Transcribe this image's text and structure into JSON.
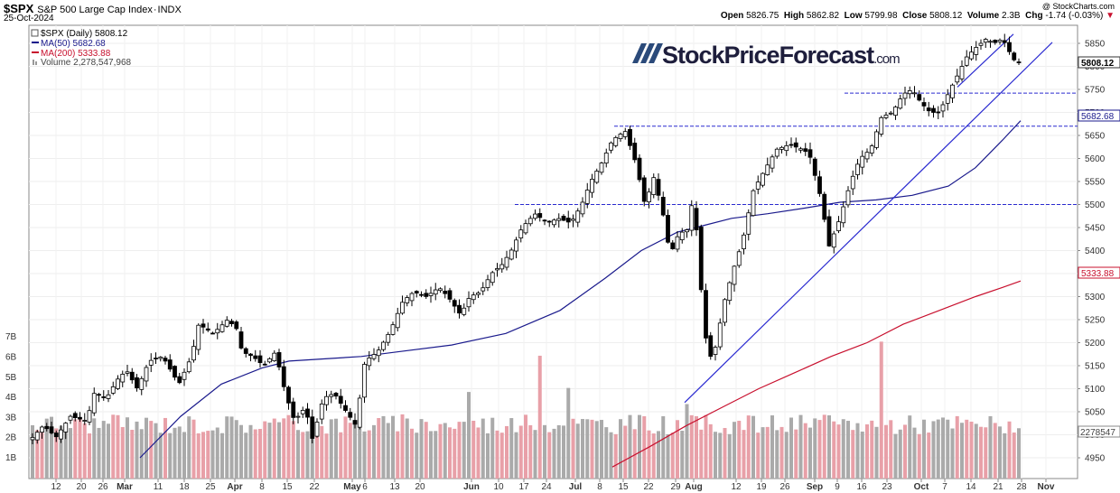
{
  "header": {
    "symbol": "$SPX",
    "name": "S&P 500 Large Cap Index",
    "exchange": "INDX",
    "date": "25-Oct-2024",
    "copyright": "@ StockCharts.com",
    "quote": {
      "open_label": "Open",
      "open": "5826.75",
      "high_label": "High",
      "high": "5862.82",
      "low_label": "Low",
      "low": "5799.98",
      "close_label": "Close",
      "close": "5808.12",
      "volume_label": "Volume",
      "volume": "2.3B",
      "chg_label": "Chg",
      "chg": "-1.74 (-0.03%)"
    }
  },
  "legend": {
    "price": "$SPX (Daily) 5808.12",
    "ma50": "MA(50) 5682.68",
    "ma200": "MA(200) 5333.88",
    "volume": "Volume 2,278,547,968"
  },
  "watermark": {
    "main": "StockPriceForecast",
    "suffix": ".com"
  },
  "badges": {
    "last": "5808.12",
    "ma50": "5682.68",
    "ma200": "5333.88",
    "vol": "2278547"
  },
  "colors": {
    "ma50": "#1a1a8c",
    "ma200": "#c8102e",
    "up_vol": "#aaaaaa",
    "down_vol": "#e8a0a8",
    "trend": "#2a2ad0"
  },
  "chart_data": {
    "type": "candlestick",
    "price_axis": {
      "min": 4950,
      "max": 5850,
      "ticks": [
        4950,
        5000,
        5050,
        5100,
        5150,
        5200,
        5250,
        5300,
        5350,
        5400,
        5450,
        5500,
        5550,
        5600,
        5650,
        5700,
        5750,
        5800,
        5850
      ]
    },
    "volume_axis": {
      "ticks": [
        "1B",
        "2B",
        "3B",
        "4B",
        "5B",
        "6B",
        "7B"
      ]
    },
    "x_ticks": [
      "12",
      "20",
      "26",
      "Mar",
      "11",
      "18",
      "25",
      "Apr",
      "8",
      "15",
      "22",
      "May",
      "6",
      "13",
      "20",
      "Jun",
      "10",
      "17",
      "24",
      "Jul",
      "8",
      "15",
      "22",
      "29",
      "Aug",
      "12",
      "19",
      "26",
      "Sep",
      "9",
      "16",
      "23",
      "Oct",
      "7",
      "14",
      "21",
      "28",
      "Nov"
    ],
    "period": {
      "start": "2024-02-12",
      "end": "2024-10-25"
    },
    "horizontal_levels": [
      5500,
      5670,
      5742
    ],
    "last_close": 5808.12,
    "ma50_last": 5682.68,
    "ma200_last": 5333.88,
    "last_volume": 2278547968
  }
}
